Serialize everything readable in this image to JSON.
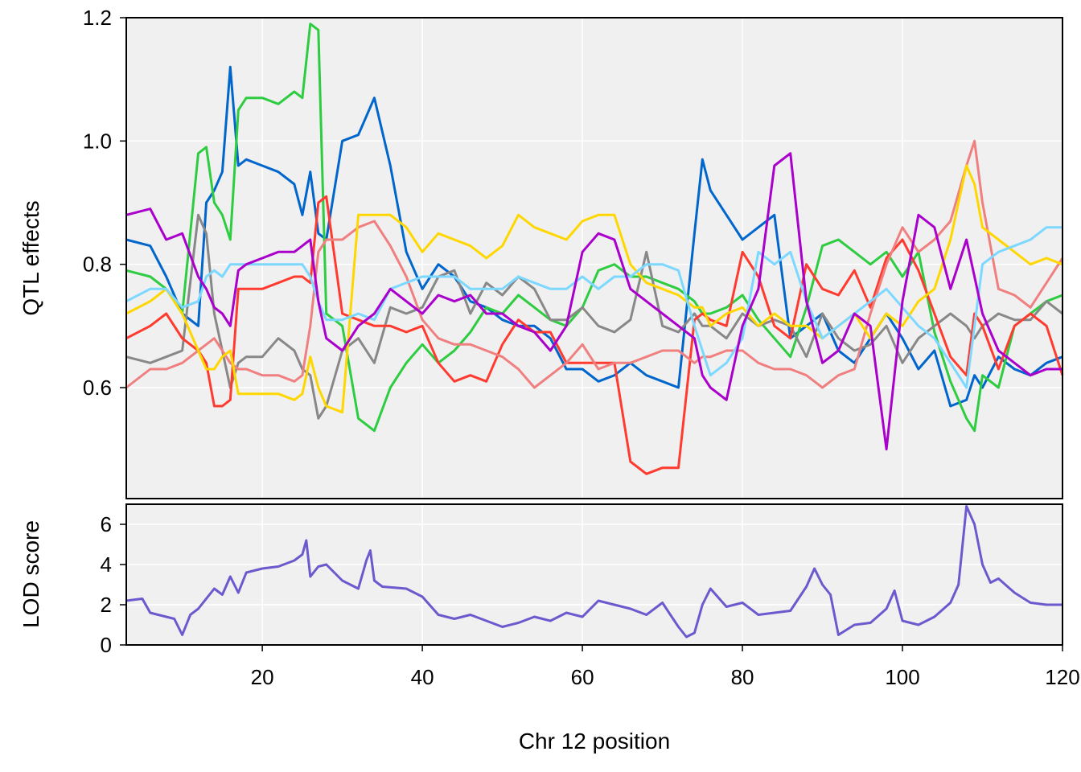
{
  "xlabel": "Chr 12 position",
  "chart_data": [
    {
      "type": "line",
      "panel": "top",
      "ylabel": "QTL effects",
      "xlim": [
        3,
        120
      ],
      "ylim": [
        0.42,
        1.2
      ],
      "x_ticks": [
        20,
        40,
        60,
        80,
        100,
        120
      ],
      "y_ticks": [
        0.6,
        0.8,
        1.0,
        1.2
      ],
      "y_tick_labels": [
        "0.6",
        "0.8",
        "1.0",
        "1.2"
      ],
      "grid": true,
      "x": [
        3,
        6,
        8,
        10,
        12,
        13,
        14,
        15,
        16,
        17,
        18,
        20,
        22,
        24,
        25,
        26,
        27,
        28,
        30,
        32,
        34,
        36,
        38,
        40,
        42,
        44,
        46,
        48,
        50,
        52,
        54,
        56,
        58,
        60,
        62,
        64,
        66,
        68,
        70,
        72,
        74,
        75,
        76,
        78,
        80,
        82,
        84,
        86,
        88,
        90,
        92,
        94,
        96,
        98,
        100,
        102,
        104,
        106,
        108,
        109,
        110,
        112,
        114,
        116,
        118,
        120
      ],
      "series": [
        {
          "color": "#0066CC",
          "values": [
            0.84,
            0.83,
            0.78,
            0.72,
            0.7,
            0.9,
            0.92,
            0.95,
            1.12,
            0.96,
            0.97,
            0.96,
            0.95,
            0.93,
            0.88,
            0.95,
            0.85,
            0.84,
            1.0,
            1.01,
            1.07,
            0.96,
            0.82,
            0.76,
            0.8,
            0.78,
            0.74,
            0.73,
            0.71,
            0.7,
            0.7,
            0.68,
            0.63,
            0.63,
            0.61,
            0.62,
            0.64,
            0.62,
            0.61,
            0.6,
            0.85,
            0.97,
            0.92,
            0.88,
            0.84,
            0.86,
            0.88,
            0.68,
            0.7,
            0.72,
            0.66,
            0.64,
            0.68,
            0.72,
            0.68,
            0.63,
            0.66,
            0.57,
            0.58,
            0.62,
            0.6,
            0.65,
            0.63,
            0.62,
            0.64,
            0.65
          ]
        },
        {
          "color": "#2ECC40",
          "values": [
            0.79,
            0.78,
            0.76,
            0.72,
            0.98,
            0.99,
            0.9,
            0.88,
            0.84,
            1.05,
            1.07,
            1.07,
            1.06,
            1.08,
            1.07,
            1.19,
            1.18,
            0.72,
            0.7,
            0.55,
            0.53,
            0.6,
            0.64,
            0.67,
            0.64,
            0.66,
            0.69,
            0.73,
            0.72,
            0.75,
            0.73,
            0.71,
            0.7,
            0.73,
            0.79,
            0.8,
            0.78,
            0.78,
            0.77,
            0.76,
            0.74,
            0.72,
            0.72,
            0.73,
            0.75,
            0.71,
            0.68,
            0.65,
            0.73,
            0.83,
            0.84,
            0.82,
            0.8,
            0.82,
            0.78,
            0.82,
            0.69,
            0.61,
            0.55,
            0.53,
            0.62,
            0.6,
            0.7,
            0.72,
            0.74,
            0.75
          ]
        },
        {
          "color": "#888888",
          "values": [
            0.65,
            0.64,
            0.65,
            0.66,
            0.88,
            0.85,
            0.72,
            0.66,
            0.6,
            0.64,
            0.65,
            0.65,
            0.68,
            0.66,
            0.63,
            0.62,
            0.55,
            0.57,
            0.66,
            0.68,
            0.64,
            0.73,
            0.72,
            0.73,
            0.78,
            0.79,
            0.72,
            0.77,
            0.75,
            0.78,
            0.76,
            0.71,
            0.71,
            0.73,
            0.7,
            0.69,
            0.71,
            0.82,
            0.7,
            0.69,
            0.72,
            0.7,
            0.7,
            0.68,
            0.72,
            0.7,
            0.71,
            0.7,
            0.65,
            0.72,
            0.68,
            0.66,
            0.67,
            0.7,
            0.64,
            0.68,
            0.7,
            0.72,
            0.7,
            0.68,
            0.7,
            0.72,
            0.71,
            0.71,
            0.74,
            0.72
          ]
        },
        {
          "color": "#FF3B30",
          "values": [
            0.68,
            0.7,
            0.72,
            0.68,
            0.66,
            0.64,
            0.57,
            0.57,
            0.58,
            0.76,
            0.76,
            0.76,
            0.77,
            0.78,
            0.78,
            0.77,
            0.9,
            0.91,
            0.72,
            0.71,
            0.7,
            0.7,
            0.69,
            0.7,
            0.64,
            0.61,
            0.62,
            0.61,
            0.67,
            0.71,
            0.69,
            0.69,
            0.64,
            0.64,
            0.64,
            0.64,
            0.48,
            0.46,
            0.47,
            0.47,
            0.71,
            0.72,
            0.71,
            0.7,
            0.82,
            0.78,
            0.7,
            0.68,
            0.8,
            0.76,
            0.75,
            0.79,
            0.73,
            0.81,
            0.84,
            0.79,
            0.72,
            0.65,
            0.62,
            0.72,
            0.7,
            0.63,
            0.7,
            0.72,
            0.7,
            0.62
          ]
        },
        {
          "color": "#F08080",
          "values": [
            0.6,
            0.63,
            0.63,
            0.64,
            0.66,
            0.67,
            0.68,
            0.66,
            0.64,
            0.63,
            0.63,
            0.62,
            0.62,
            0.61,
            0.62,
            0.7,
            0.82,
            0.84,
            0.84,
            0.86,
            0.87,
            0.83,
            0.78,
            0.71,
            0.68,
            0.67,
            0.67,
            0.66,
            0.65,
            0.63,
            0.6,
            0.62,
            0.64,
            0.67,
            0.63,
            0.64,
            0.64,
            0.65,
            0.66,
            0.66,
            0.64,
            0.65,
            0.65,
            0.66,
            0.66,
            0.64,
            0.63,
            0.63,
            0.62,
            0.6,
            0.62,
            0.63,
            0.72,
            0.8,
            0.86,
            0.82,
            0.84,
            0.87,
            0.96,
            1.0,
            0.9,
            0.76,
            0.75,
            0.73,
            0.77,
            0.81
          ]
        },
        {
          "color": "#FFD700",
          "values": [
            0.72,
            0.74,
            0.76,
            0.72,
            0.66,
            0.63,
            0.63,
            0.65,
            0.66,
            0.59,
            0.59,
            0.59,
            0.59,
            0.58,
            0.59,
            0.65,
            0.6,
            0.57,
            0.56,
            0.88,
            0.88,
            0.88,
            0.86,
            0.82,
            0.85,
            0.84,
            0.83,
            0.81,
            0.83,
            0.88,
            0.86,
            0.85,
            0.84,
            0.87,
            0.88,
            0.88,
            0.8,
            0.77,
            0.76,
            0.75,
            0.73,
            0.73,
            0.7,
            0.72,
            0.73,
            0.7,
            0.72,
            0.7,
            0.7,
            0.68,
            0.7,
            0.72,
            0.68,
            0.72,
            0.7,
            0.74,
            0.76,
            0.84,
            0.96,
            0.93,
            0.86,
            0.84,
            0.82,
            0.8,
            0.81,
            0.8
          ]
        },
        {
          "color": "#7DD8FF",
          "values": [
            0.74,
            0.76,
            0.76,
            0.73,
            0.74,
            0.78,
            0.79,
            0.78,
            0.8,
            0.8,
            0.8,
            0.8,
            0.8,
            0.8,
            0.8,
            0.78,
            0.74,
            0.71,
            0.71,
            0.72,
            0.71,
            0.76,
            0.77,
            0.78,
            0.78,
            0.78,
            0.76,
            0.76,
            0.76,
            0.78,
            0.77,
            0.76,
            0.76,
            0.78,
            0.76,
            0.78,
            0.78,
            0.8,
            0.8,
            0.79,
            0.7,
            0.66,
            0.62,
            0.64,
            0.68,
            0.82,
            0.8,
            0.82,
            0.74,
            0.68,
            0.7,
            0.72,
            0.74,
            0.76,
            0.73,
            0.7,
            0.68,
            0.64,
            0.6,
            0.7,
            0.8,
            0.82,
            0.83,
            0.84,
            0.86,
            0.86
          ]
        },
        {
          "color": "#AA00CC",
          "values": [
            0.88,
            0.89,
            0.84,
            0.85,
            0.78,
            0.76,
            0.73,
            0.72,
            0.7,
            0.79,
            0.8,
            0.81,
            0.82,
            0.82,
            0.83,
            0.84,
            0.74,
            0.68,
            0.66,
            0.7,
            0.72,
            0.76,
            0.74,
            0.72,
            0.75,
            0.74,
            0.75,
            0.72,
            0.72,
            0.7,
            0.69,
            0.66,
            0.7,
            0.82,
            0.85,
            0.84,
            0.76,
            0.74,
            0.72,
            0.7,
            0.68,
            0.62,
            0.6,
            0.58,
            0.7,
            0.76,
            0.96,
            0.98,
            0.74,
            0.64,
            0.66,
            0.72,
            0.7,
            0.5,
            0.74,
            0.88,
            0.86,
            0.76,
            0.84,
            0.78,
            0.72,
            0.66,
            0.64,
            0.62,
            0.63,
            0.63
          ]
        }
      ]
    },
    {
      "type": "line",
      "panel": "bottom",
      "ylabel": "LOD score",
      "xlim": [
        3,
        120
      ],
      "ylim": [
        0,
        7
      ],
      "x_ticks": [
        20,
        40,
        60,
        80,
        100,
        120
      ],
      "x_tick_labels": [
        "20",
        "40",
        "60",
        "80",
        "100",
        "120"
      ],
      "y_ticks": [
        0,
        2,
        4,
        6
      ],
      "y_tick_labels": [
        "0",
        "2",
        "4",
        "6"
      ],
      "grid": true,
      "series": [
        {
          "color": "#6A5ACD",
          "x": [
            3,
            5,
            6,
            8,
            9,
            10,
            11,
            12,
            14,
            15,
            16,
            17,
            18,
            20,
            22,
            24,
            25,
            25.5,
            26,
            27,
            28,
            30,
            32,
            33,
            33.5,
            34,
            35,
            38,
            40,
            42,
            44,
            46,
            48,
            50,
            52,
            54,
            56,
            58,
            60,
            62,
            64,
            66,
            68,
            70,
            71,
            72,
            73,
            74,
            75,
            76,
            78,
            80,
            82,
            84,
            86,
            88,
            89,
            90,
            91,
            92,
            94,
            96,
            98,
            99,
            100,
            102,
            104,
            106,
            107,
            108,
            109,
            110,
            111,
            112,
            114,
            116,
            118,
            120
          ],
          "values": [
            2.2,
            2.3,
            1.6,
            1.4,
            1.3,
            0.5,
            1.5,
            1.8,
            2.8,
            2.5,
            3.4,
            2.6,
            3.6,
            3.8,
            3.9,
            4.2,
            4.5,
            5.2,
            3.4,
            3.9,
            4.0,
            3.2,
            2.8,
            4.2,
            4.7,
            3.2,
            2.9,
            2.8,
            2.4,
            1.5,
            1.3,
            1.5,
            1.2,
            0.9,
            1.1,
            1.4,
            1.2,
            1.6,
            1.4,
            2.2,
            2.0,
            1.8,
            1.5,
            2.1,
            1.5,
            0.9,
            0.4,
            0.6,
            2.0,
            2.8,
            1.9,
            2.1,
            1.5,
            1.6,
            1.7,
            2.9,
            3.8,
            3.0,
            2.5,
            0.5,
            1.0,
            1.1,
            1.8,
            2.7,
            1.2,
            1.0,
            1.4,
            2.1,
            3.0,
            6.9,
            6.0,
            4.0,
            3.1,
            3.3,
            2.6,
            2.1,
            2.0,
            2.0
          ]
        }
      ]
    }
  ]
}
